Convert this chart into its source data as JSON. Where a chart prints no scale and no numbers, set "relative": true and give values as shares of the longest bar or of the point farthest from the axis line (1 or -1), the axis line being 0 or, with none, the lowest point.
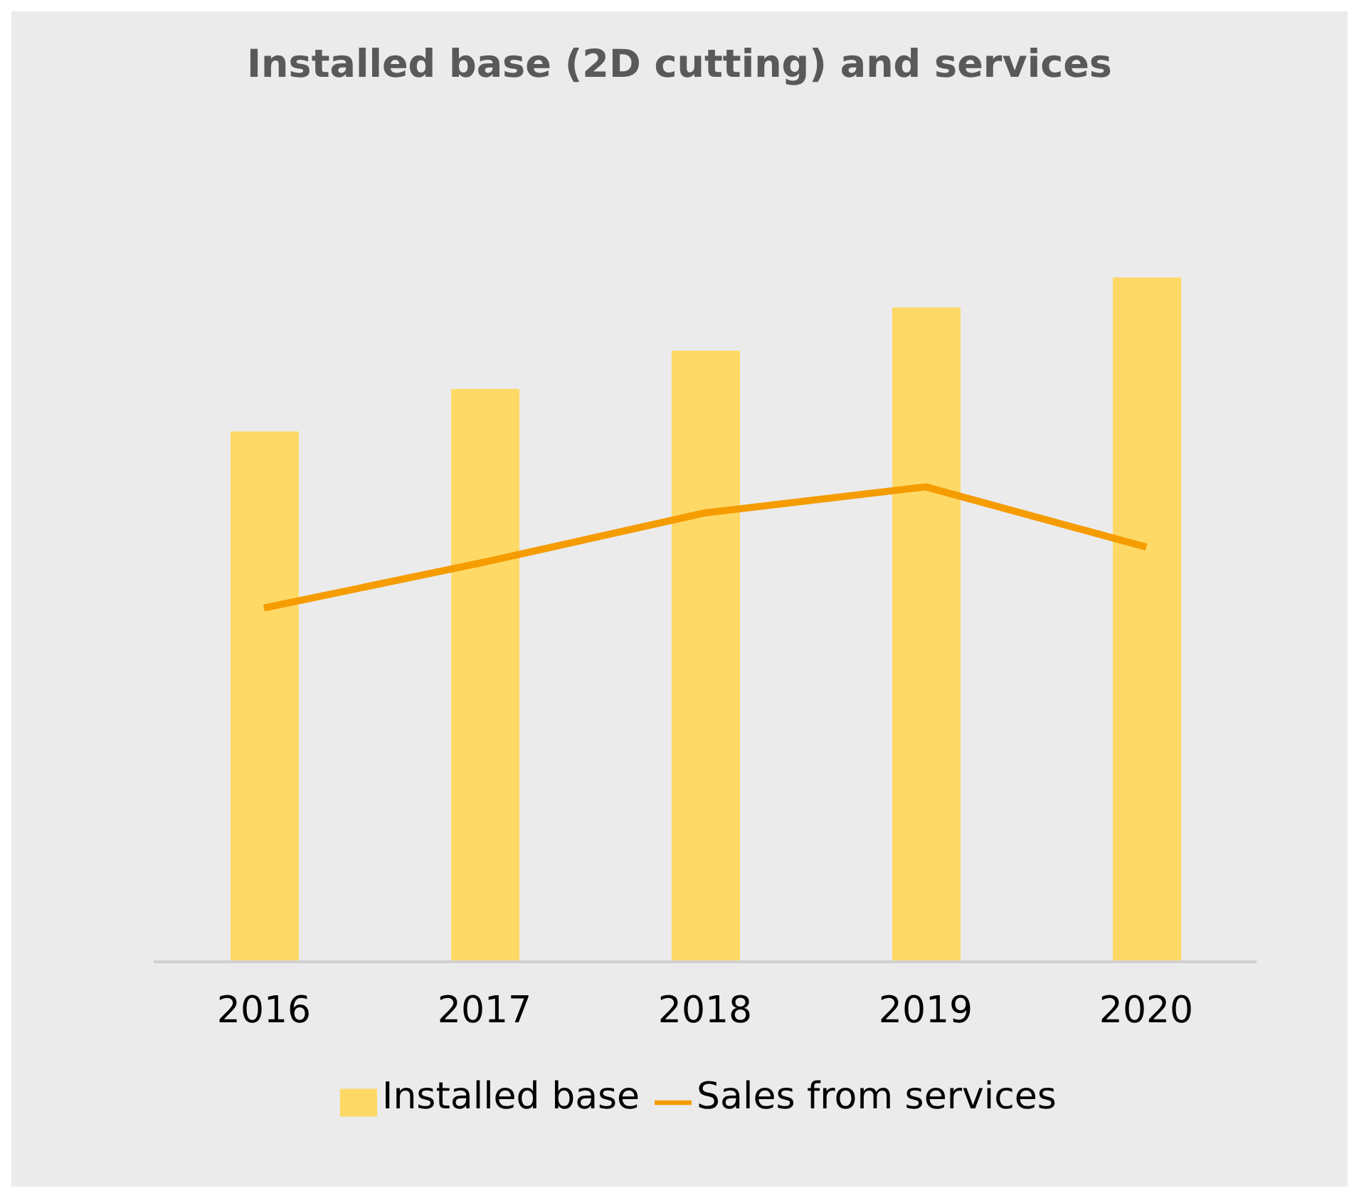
{
  "chart_data": {
    "type": "bar",
    "title": "Installed base (2D cutting) and services",
    "categories": [
      "2016",
      "2017",
      "2018",
      "2019",
      "2020"
    ],
    "relative": true,
    "legend": "bottom",
    "grid": false,
    "marker": "none",
    "series": [
      {
        "name": "Installed base",
        "color": "#ffd966",
        "values": [
          0.775,
          0.837,
          0.893,
          0.956,
          1
        ]
      },
      {
        "name": "Sales from services",
        "type": "line",
        "color": "#f59c00",
        "values": [
          0.517,
          0.584,
          0.656,
          0.694,
          0.606
        ]
      }
    ]
  }
}
